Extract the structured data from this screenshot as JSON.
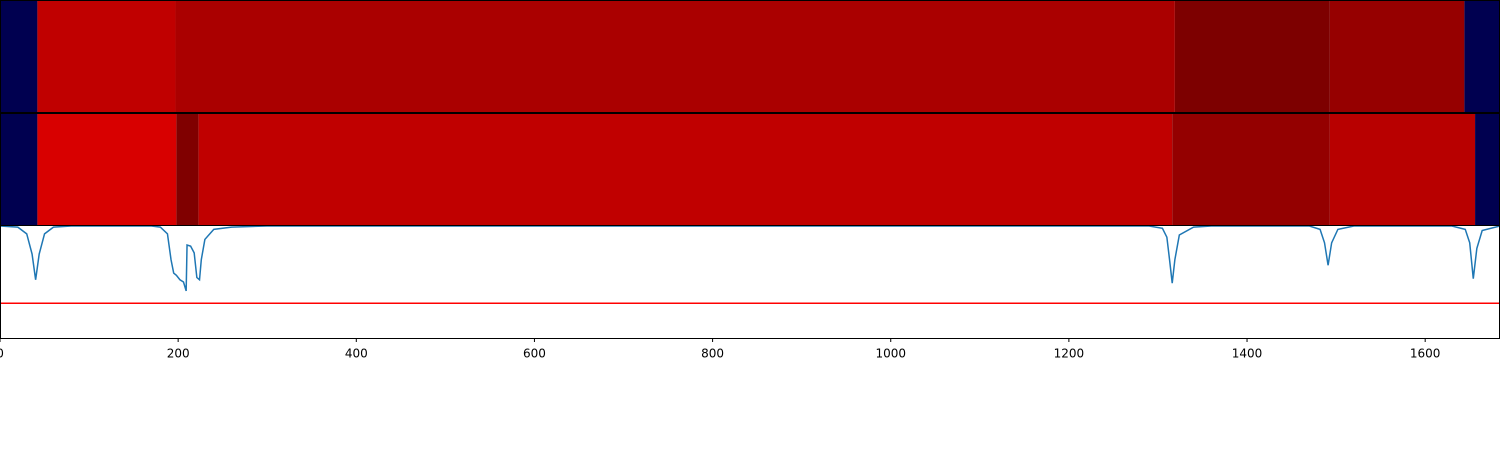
{
  "chart_data": {
    "type": "strips-and-line",
    "xlim": [
      0,
      1684
    ],
    "xticks": [
      0,
      200,
      400,
      600,
      800,
      1000,
      1200,
      1400,
      1600
    ],
    "strips": [
      {
        "bounds": [
          0,
          42,
          197,
          1319,
          1493,
          1644,
          1684
        ],
        "colors": [
          "#000050",
          "#c00000",
          "#aa0000",
          "#7d0000",
          "#960000",
          "#000050"
        ]
      },
      {
        "bounds": [
          0,
          42,
          198,
          223,
          1316,
          1493,
          1656,
          1684
        ],
        "colors": [
          "#000050",
          "#d80000",
          "#800000",
          "#c00000",
          "#940000",
          "#b80000",
          "#000050"
        ]
      }
    ],
    "line": {
      "color": "#1f77b4",
      "x": [
        0,
        20,
        30,
        36,
        40,
        44,
        50,
        60,
        80,
        170,
        180,
        188,
        192,
        195,
        198,
        202,
        206,
        209,
        210,
        214,
        218,
        221,
        224,
        226,
        230,
        240,
        260,
        300,
        1290,
        1305,
        1310,
        1313,
        1316,
        1319,
        1324,
        1340,
        1360,
        1470,
        1482,
        1487,
        1491,
        1495,
        1502,
        1520,
        1630,
        1645,
        1650,
        1654,
        1658,
        1664,
        1684
      ],
      "values": [
        1.0,
        0.99,
        0.93,
        0.75,
        0.52,
        0.75,
        0.93,
        0.99,
        1.0,
        1.0,
        0.99,
        0.93,
        0.7,
        0.58,
        0.56,
        0.52,
        0.5,
        0.42,
        0.83,
        0.82,
        0.76,
        0.54,
        0.52,
        0.7,
        0.88,
        0.97,
        0.99,
        1.0,
        1.0,
        0.98,
        0.9,
        0.7,
        0.49,
        0.7,
        0.92,
        0.99,
        1.0,
        1.0,
        0.97,
        0.85,
        0.65,
        0.85,
        0.97,
        1.0,
        1.0,
        0.97,
        0.85,
        0.53,
        0.8,
        0.96,
        1.0
      ]
    },
    "threshold": {
      "value": 0.31,
      "color": "#ff0000"
    },
    "ylim": [
      0,
      1.0
    ]
  }
}
